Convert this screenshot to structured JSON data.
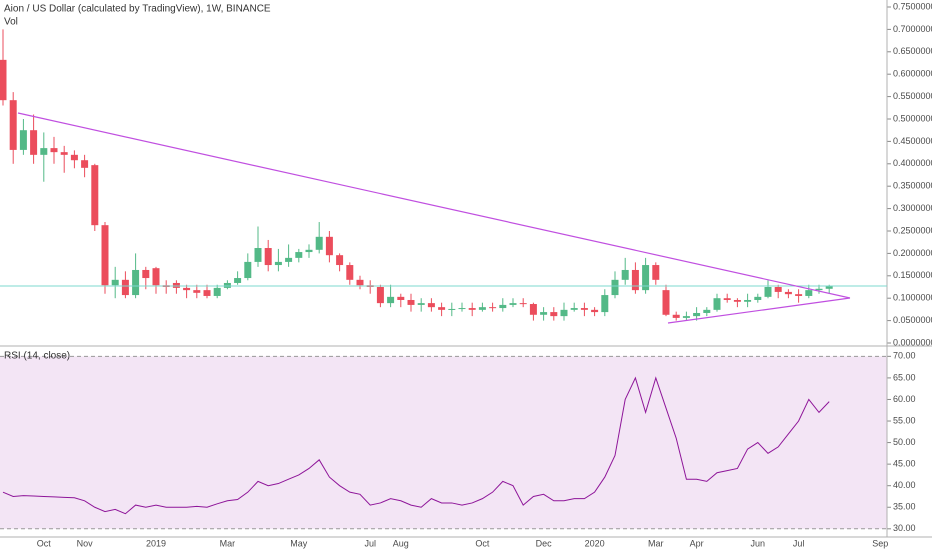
{
  "chart_data": [
    {
      "type": "candlestick",
      "title": "Aion / US Dollar (calculated by TradingView), 1W, BINANCE",
      "subtitle": "Vol",
      "up_color": "#53b987",
      "down_color": "#eb4d5c",
      "ylim": [
        0,
        0.7656
      ],
      "yticks": [
        {
          "value": 0,
          "label": "0.00000000"
        },
        {
          "value": 0.05,
          "label": "0.05000000"
        },
        {
          "value": 0.1,
          "label": "0.10000000"
        },
        {
          "value": 0.15,
          "label": "0.15000000"
        },
        {
          "value": 0.2,
          "label": "0.20000000"
        },
        {
          "value": 0.25,
          "label": "0.25000000"
        },
        {
          "value": 0.3,
          "label": "0.30000000"
        },
        {
          "value": 0.35,
          "label": "0.35000000"
        },
        {
          "value": 0.4,
          "label": "0.40000000"
        },
        {
          "value": 0.45,
          "label": "0.45000000"
        },
        {
          "value": 0.5,
          "label": "0.50000000"
        },
        {
          "value": 0.55,
          "label": "0.55000000"
        },
        {
          "value": 0.6,
          "label": "0.60000000"
        },
        {
          "value": 0.65,
          "label": "0.65000000"
        },
        {
          "value": 0.7,
          "label": "0.70000000"
        },
        {
          "value": 0.75,
          "label": "0.75000000"
        }
      ],
      "open": [
        0.632,
        0.542,
        0.431,
        0.475,
        0.42,
        0.435,
        0.426,
        0.42,
        0.408,
        0.397,
        0.263,
        0.129,
        0.141,
        0.107,
        0.163,
        0.167,
        0.129,
        0.134,
        0.123,
        0.118,
        0.118,
        0.105,
        0.123,
        0.134,
        0.145,
        0.181,
        0.212,
        0.174,
        0.181,
        0.19,
        0.203,
        0.208,
        0.237,
        0.196,
        0.174,
        0.141,
        0.129,
        0.125,
        0.089,
        0.103,
        0.096,
        0.085,
        0.089,
        0.08,
        0.074,
        0.076,
        0.078,
        0.074,
        0.08,
        0.078,
        0.085,
        0.089,
        0.087,
        0.063,
        0.069,
        0.06,
        0.074,
        0.078,
        0.074,
        0.069,
        0.107,
        0.141,
        0.163,
        0.118,
        0.174,
        0.118,
        0.063,
        0.056,
        0.06,
        0.067,
        0.074,
        0.1,
        0.096,
        0.092,
        0.096,
        0.103,
        0.125,
        0.114,
        0.109,
        0.105,
        0.118,
        0.121
      ],
      "high": [
        0.7,
        0.56,
        0.5,
        0.51,
        0.47,
        0.46,
        0.44,
        0.43,
        0.42,
        0.4,
        0.27,
        0.17,
        0.16,
        0.2,
        0.17,
        0.17,
        0.14,
        0.14,
        0.13,
        0.13,
        0.13,
        0.13,
        0.14,
        0.16,
        0.2,
        0.26,
        0.23,
        0.21,
        0.22,
        0.21,
        0.22,
        0.27,
        0.25,
        0.2,
        0.18,
        0.15,
        0.14,
        0.13,
        0.13,
        0.11,
        0.11,
        0.1,
        0.1,
        0.09,
        0.09,
        0.09,
        0.09,
        0.09,
        0.09,
        0.1,
        0.1,
        0.1,
        0.09,
        0.08,
        0.08,
        0.09,
        0.09,
        0.09,
        0.08,
        0.12,
        0.16,
        0.19,
        0.18,
        0.19,
        0.18,
        0.13,
        0.07,
        0.07,
        0.08,
        0.08,
        0.11,
        0.11,
        0.1,
        0.11,
        0.11,
        0.14,
        0.13,
        0.12,
        0.12,
        0.13,
        0.13,
        0.13
      ],
      "low": [
        0.53,
        0.4,
        0.42,
        0.4,
        0.36,
        0.4,
        0.38,
        0.39,
        0.37,
        0.25,
        0.11,
        0.1,
        0.1,
        0.1,
        0.12,
        0.11,
        0.11,
        0.11,
        0.1,
        0.1,
        0.1,
        0.1,
        0.12,
        0.13,
        0.14,
        0.17,
        0.16,
        0.16,
        0.17,
        0.18,
        0.19,
        0.2,
        0.18,
        0.16,
        0.13,
        0.12,
        0.11,
        0.08,
        0.08,
        0.08,
        0.07,
        0.07,
        0.07,
        0.06,
        0.06,
        0.07,
        0.06,
        0.07,
        0.07,
        0.07,
        0.08,
        0.08,
        0.05,
        0.05,
        0.05,
        0.05,
        0.07,
        0.06,
        0.06,
        0.06,
        0.1,
        0.13,
        0.11,
        0.11,
        0.13,
        0.06,
        0.05,
        0.05,
        0.05,
        0.06,
        0.07,
        0.09,
        0.08,
        0.08,
        0.09,
        0.1,
        0.1,
        0.1,
        0.09,
        0.1,
        0.11,
        0.11
      ],
      "close": [
        0.542,
        0.431,
        0.475,
        0.42,
        0.435,
        0.426,
        0.42,
        0.408,
        0.391,
        0.263,
        0.129,
        0.141,
        0.107,
        0.163,
        0.145,
        0.129,
        0.125,
        0.123,
        0.118,
        0.112,
        0.105,
        0.123,
        0.134,
        0.145,
        0.181,
        0.212,
        0.174,
        0.181,
        0.19,
        0.203,
        0.208,
        0.237,
        0.196,
        0.174,
        0.141,
        0.129,
        0.125,
        0.089,
        0.103,
        0.096,
        0.085,
        0.089,
        0.08,
        0.074,
        0.076,
        0.078,
        0.074,
        0.08,
        0.078,
        0.085,
        0.089,
        0.087,
        0.063,
        0.069,
        0.06,
        0.074,
        0.078,
        0.074,
        0.069,
        0.107,
        0.141,
        0.163,
        0.118,
        0.174,
        0.141,
        0.063,
        0.056,
        0.06,
        0.067,
        0.074,
        0.1,
        0.096,
        0.092,
        0.096,
        0.103,
        0.125,
        0.114,
        0.109,
        0.105,
        0.118,
        0.121,
        0.127
      ]
    },
    {
      "type": "line",
      "title": "RSI (14, close)",
      "color": "#8e1599",
      "band_color": "#f3e5f5",
      "ylim": [
        28.1,
        72.4
      ],
      "yticks": [
        {
          "value": 30,
          "label": "30.00"
        },
        {
          "value": 35,
          "label": "35.00"
        },
        {
          "value": 40,
          "label": "40.00"
        },
        {
          "value": 45,
          "label": "45.00"
        },
        {
          "value": 50,
          "label": "50.00"
        },
        {
          "value": 55,
          "label": "55.00"
        },
        {
          "value": 60,
          "label": "60.00"
        },
        {
          "value": 65,
          "label": "65.00"
        },
        {
          "value": 70,
          "label": "70.00"
        }
      ],
      "values": [
        38.5,
        37.5,
        37.7,
        37.6,
        37.5,
        37.4,
        37.3,
        37.2,
        36.5,
        35,
        34,
        34.5,
        33.5,
        35.5,
        35,
        35.5,
        35,
        35,
        35,
        35.2,
        35,
        35.8,
        36.5,
        36.8,
        38.5,
        41,
        40,
        40.5,
        41.5,
        42.5,
        44,
        46,
        42,
        40,
        38.5,
        38,
        35.5,
        36,
        37,
        36.5,
        35.5,
        35,
        37,
        36,
        36,
        35.5,
        36,
        37,
        38.5,
        41,
        40,
        35.5,
        37.5,
        38,
        36.5,
        36.5,
        37,
        37,
        38.5,
        42,
        47,
        60,
        65,
        57,
        65,
        58,
        51,
        41.5,
        41.5,
        41,
        43,
        43.5,
        44,
        48.5,
        50,
        47.5,
        49,
        52,
        55,
        60,
        57,
        59.5
      ],
      "x_labels": [
        {
          "index": 4,
          "label": "Oct"
        },
        {
          "index": 8,
          "label": "Nov"
        },
        {
          "index": 15,
          "label": "2019"
        },
        {
          "index": 22,
          "label": "Mar"
        },
        {
          "index": 29,
          "label": "May"
        },
        {
          "index": 36,
          "label": "Jul"
        },
        {
          "index": 39,
          "label": "Aug"
        },
        {
          "index": 47,
          "label": "Oct"
        },
        {
          "index": 53,
          "label": "Dec"
        },
        {
          "index": 58,
          "label": "2020"
        },
        {
          "index": 64,
          "label": "Mar"
        },
        {
          "index": 68,
          "label": "Apr"
        },
        {
          "index": 74,
          "label": "Jun"
        },
        {
          "index": 78,
          "label": "Jul"
        },
        {
          "index": 86,
          "label": "Sep"
        }
      ]
    }
  ]
}
